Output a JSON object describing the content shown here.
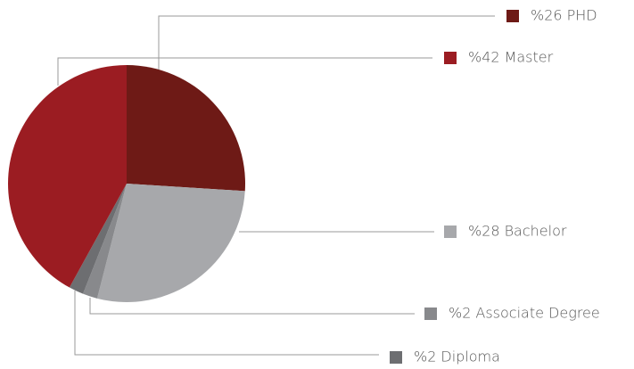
{
  "chart_data": {
    "type": "pie",
    "categories": [
      "PHD",
      "Bachelor",
      "Associate Degree",
      "Diploma",
      "Master"
    ],
    "values": [
      26,
      28,
      2,
      2,
      42
    ],
    "value_labels": [
      "%26",
      "%28",
      "%2",
      "%2",
      "%42"
    ],
    "colors": [
      "#6e1a16",
      "#a7a8ab",
      "#88898c",
      "#6d6e71",
      "#9b1c22"
    ]
  }
}
